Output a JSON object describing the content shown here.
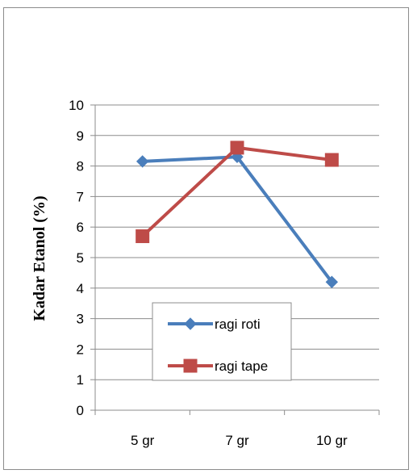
{
  "chart_data": {
    "type": "line",
    "categories": [
      "5 gr",
      "7 gr",
      "10 gr"
    ],
    "series": [
      {
        "name": "ragi roti",
        "values": [
          8.15,
          8.3,
          4.2
        ],
        "color": "#4a7ebb",
        "marker": "diamond"
      },
      {
        "name": "ragi tape",
        "values": [
          5.7,
          8.6,
          8.2
        ],
        "color": "#be4b48",
        "marker": "square"
      }
    ],
    "title": "",
    "xlabel": "",
    "ylabel": "Kadar Etanol (%)",
    "ylim": [
      0,
      10
    ],
    "yticks": [
      "0",
      "1",
      "2",
      "3",
      "4",
      "5",
      "6",
      "7",
      "8",
      "9",
      "10"
    ],
    "grid": true,
    "legend_position": "lower-center inside plot"
  }
}
